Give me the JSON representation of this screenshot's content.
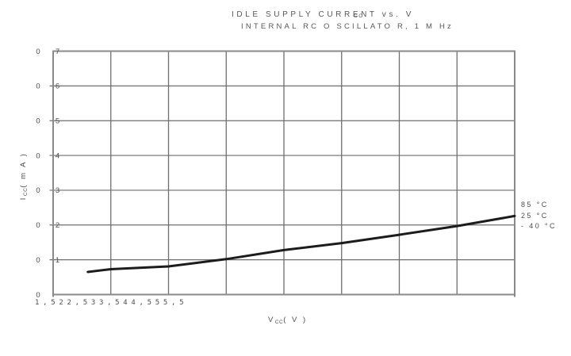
{
  "header": {
    "title": "IDLE SUPPLY CURRENT vs. V",
    "title_displaced_subscript": "CC",
    "subtitle": "INTERNAL RC O SCILLATO R, 1 M Hz"
  },
  "axes": {
    "y": {
      "base": "I",
      "sub": "CC",
      "unit": "( m A )"
    },
    "x": {
      "base": "V",
      "sub": "CC",
      "unit": "( V )"
    }
  },
  "ticks": {
    "x_display": "1,522,533,544,555,5",
    "y_leading_zero": "0"
  },
  "legend": {
    "position": "right",
    "items": [
      {
        "label": "85 °C"
      },
      {
        "label": "25 °C"
      },
      {
        "label": "- 40 °C"
      }
    ]
  },
  "chart_data": {
    "type": "line",
    "title": "IDLE SUPPLY CURRENT vs. VCC",
    "subtitle": "INTERNAL RC OSCILLATOR, 1 MHz",
    "xlabel": "VCC (V)",
    "ylabel": "ICC (mA)",
    "xlim": [
      1.5,
      5.5
    ],
    "ylim": [
      0,
      0.7
    ],
    "xticks": [
      1.5,
      2,
      2.5,
      3,
      3.5,
      4,
      4.5,
      5,
      5.5
    ],
    "yticks": [
      0,
      0.1,
      0.2,
      0.3,
      0.4,
      0.5,
      0.6,
      0.7
    ],
    "grid": true,
    "legend_position": "right",
    "note": "Three temperature curves (85 °C, 25 °C, -40 °C) overlap and appear as one line",
    "series": [
      {
        "name": "85 °C / 25 °C / -40 °C (overlapping)",
        "x": [
          1.8,
          2.0,
          2.5,
          3.0,
          3.5,
          4.0,
          4.5,
          5.0,
          5.5
        ],
        "y": [
          0.065,
          0.073,
          0.081,
          0.102,
          0.128,
          0.148,
          0.172,
          0.197,
          0.226
        ]
      }
    ],
    "colors": {
      "curve": "#1c1c1c",
      "grid": "#6e6e6e",
      "border": "#8a8a8a",
      "text": "#4d4d4d"
    }
  }
}
